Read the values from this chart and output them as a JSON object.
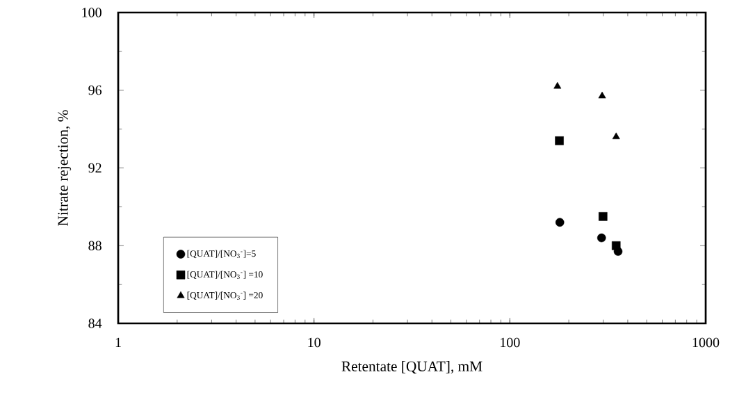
{
  "chart_data": {
    "type": "scatter",
    "xlabel": "Retentate [QUAT], mM",
    "ylabel": "Nitrate rejection, %",
    "log": "x",
    "xlim": [
      1,
      1000
    ],
    "xticks": [
      1,
      10,
      100,
      1000
    ],
    "ylim": [
      84,
      100
    ],
    "yticks": [
      84,
      88,
      92,
      96,
      100
    ],
    "grid": false,
    "legend": "bottom left",
    "series": [
      {
        "name": "[QUAT]/[NO$_{3}$$^{-}$]=5",
        "color": "#000000",
        "marker": "circle",
        "x": [
          180,
          294,
          357
        ],
        "values": [
          89.2,
          88.4,
          87.7
        ]
      },
      {
        "name": "[QUAT]/[NO$_{3}$$^{-}$] =10",
        "color": "#000000",
        "marker": "square",
        "x": [
          179,
          299,
          349
        ],
        "values": [
          93.4,
          89.5,
          88.0
        ]
      },
      {
        "name": "[QUAT]/[NO$_{3}$$^{-}$] =20",
        "color": "#000000",
        "marker": "triangle",
        "x": [
          175,
          296,
          349
        ],
        "values": [
          96.2,
          95.7,
          93.6
        ]
      }
    ]
  }
}
